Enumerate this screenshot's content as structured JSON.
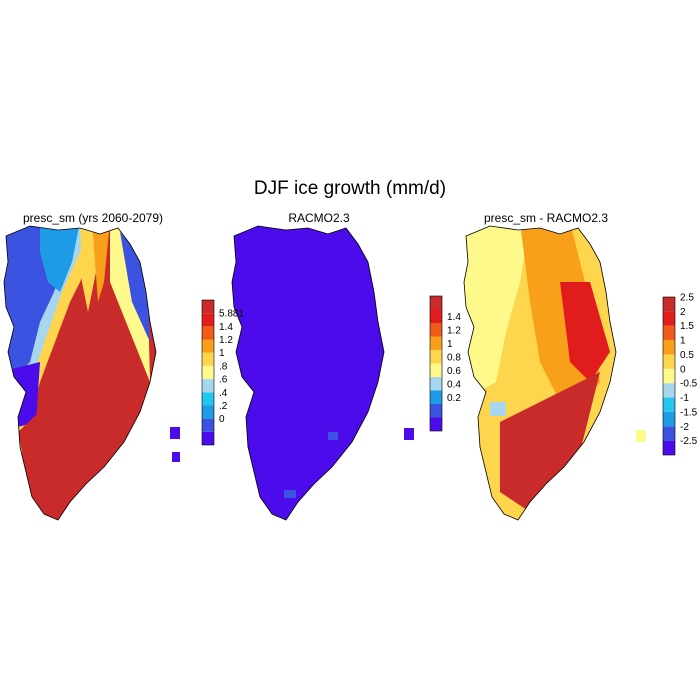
{
  "title": "DJF ice growth (mm/d)",
  "chart_data": [
    {
      "type": "heatmap",
      "title": "presc_sm (yrs 2060-2079)",
      "colorbar": {
        "colors": [
          "#4b0bea",
          "#3c52e0",
          "#1e9be6",
          "#24c6f0",
          "#a6d7ef",
          "#fdf98a",
          "#fdd64d",
          "#f9a01a",
          "#f05a1a",
          "#e11c1c",
          "#c92a2a"
        ],
        "ticks": [
          "0",
          "0.2",
          "0.4",
          "0.6",
          "0.8",
          "1",
          "1.2",
          "1.4",
          "5.881"
        ],
        "tick_labels": [
          "0",
          ".2",
          ".4",
          ".6",
          ".8",
          "1",
          "1.2",
          "1.4",
          "5.881"
        ]
      },
      "field_description_values": {
        "interior_ridge": 5.881,
        "west_margin": 0.3,
        "northwest": 0.5,
        "coast": 0.0
      }
    },
    {
      "type": "heatmap",
      "title": "RACMO2.3",
      "colorbar": {
        "colors": [
          "#4b0bea",
          "#3c52e0",
          "#1e9be6",
          "#a6d7ef",
          "#fdf98a",
          "#fdd64d",
          "#f9a01a",
          "#f05a1a",
          "#e11c1c",
          "#c92a2a"
        ],
        "tick_labels": [
          "0.2",
          "0.4",
          "0.6",
          "0.8",
          "1",
          "1.2",
          "1.4"
        ]
      },
      "field_description_values": {
        "ice_sheet": 0.0
      }
    },
    {
      "type": "heatmap",
      "title": "presc_sm - RACMO2.3",
      "colorbar": {
        "colors": [
          "#4b0bea",
          "#3c52e0",
          "#1e9be6",
          "#24c6f0",
          "#a6d7ef",
          "#fdf98a",
          "#fdd64d",
          "#f9a01a",
          "#f05a1a",
          "#e11c1c",
          "#c92a2a"
        ],
        "tick_labels": [
          "-2.5",
          "-2",
          "-1.5",
          "-1",
          "-0.5",
          "0",
          "0.5",
          "1",
          "1.5",
          "2",
          "2.5"
        ]
      }
    }
  ]
}
